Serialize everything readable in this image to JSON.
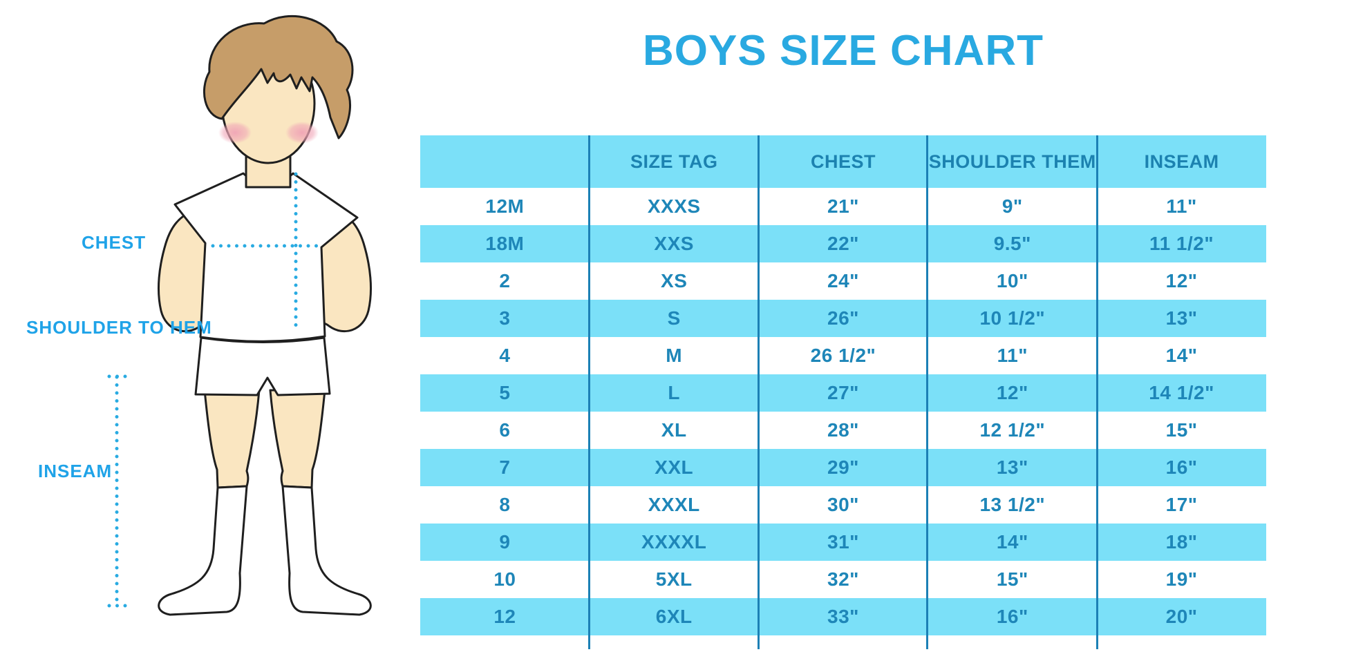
{
  "title": "BOYS SIZE CHART",
  "diagram": {
    "labels": [
      {
        "id": "chest",
        "text": "CHEST"
      },
      {
        "id": "shoulder-to-hem",
        "text": "SHOULDER TO HEM"
      },
      {
        "id": "inseam",
        "text": "INSEAM"
      }
    ]
  },
  "colors": {
    "title_blue": "#29A9E1",
    "label_blue": "#1FA3E8",
    "row_cyan": "#7BE0F8",
    "table_text": "#1E86B8",
    "divider_blue": "#1C80B5",
    "dotted_line_blue": "#29ABE2",
    "hair_brown": "#C69D69",
    "skin": "#FAE6C1"
  },
  "chart_data": {
    "type": "table",
    "title": "BOYS SIZE CHART",
    "columns": [
      "",
      "SIZE TAG",
      "CHEST",
      "SHOULDER THEM",
      "INSEAM"
    ],
    "rows": [
      [
        "12M",
        "XXXS",
        "21\"",
        "9\"",
        "11\""
      ],
      [
        "18M",
        "XXS",
        "22\"",
        "9.5\"",
        "11 1/2\""
      ],
      [
        "2",
        "XS",
        "24\"",
        "10\"",
        "12\""
      ],
      [
        "3",
        "S",
        "26\"",
        "10 1/2\"",
        "13\""
      ],
      [
        "4",
        "M",
        "26 1/2\"",
        "11\"",
        "14\""
      ],
      [
        "5",
        "L",
        "27\"",
        "12\"",
        "14 1/2\""
      ],
      [
        "6",
        "XL",
        "28\"",
        "12 1/2\"",
        "15\""
      ],
      [
        "7",
        "XXL",
        "29\"",
        "13\"",
        "16\""
      ],
      [
        "8",
        "XXXL",
        "30\"",
        "13 1/2\"",
        "17\""
      ],
      [
        "9",
        "XXXXL",
        "31\"",
        "14\"",
        "18\""
      ],
      [
        "10",
        "5XL",
        "32\"",
        "15\"",
        "19\""
      ],
      [
        "12",
        "6XL",
        "33\"",
        "16\"",
        "20\""
      ]
    ]
  }
}
